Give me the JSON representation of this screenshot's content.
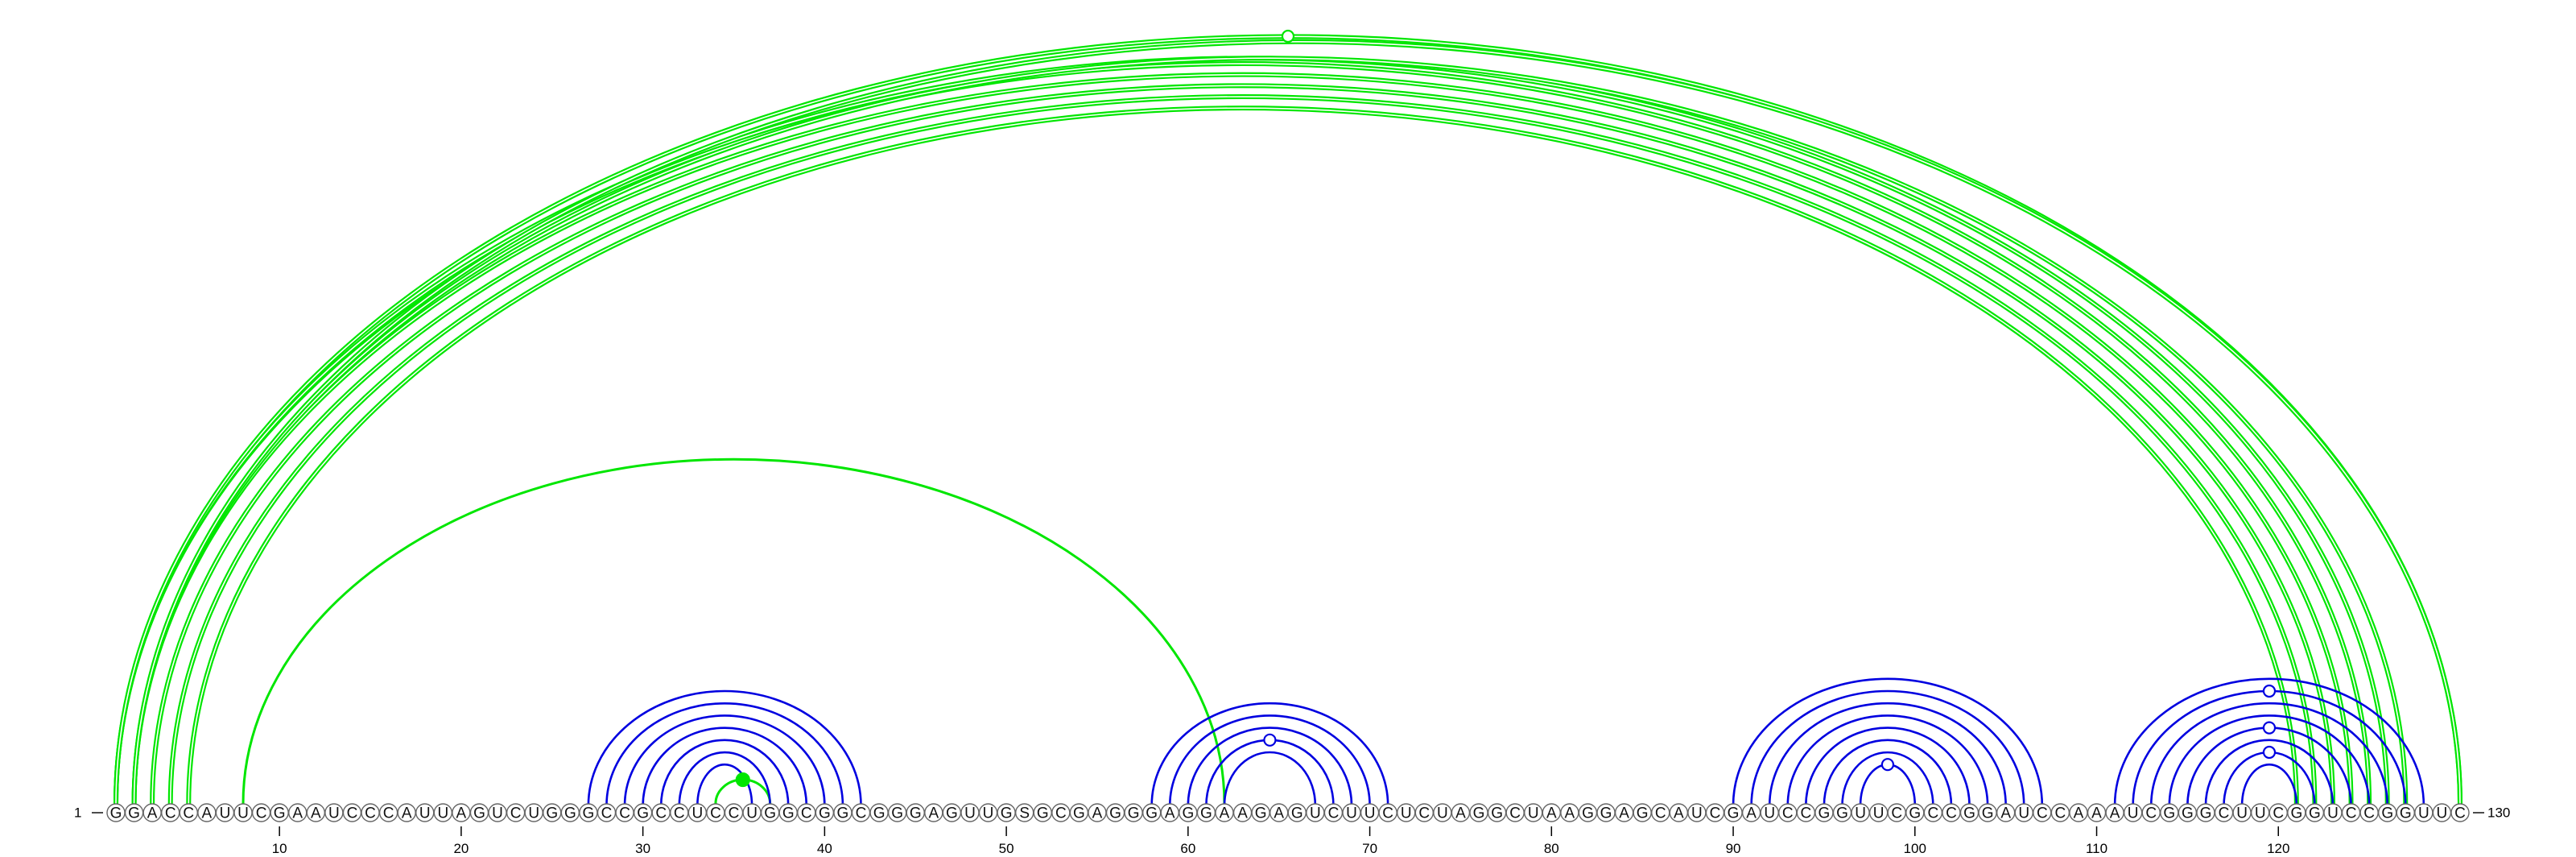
{
  "sequence": "GGACCAUUCGAAUCCCAUUAGUCUGGGCCGCCUCCUGGCGGCGGGAGUUGSGCGAGGGAGGAAGAGUCUUCUCUAGGCUAAGGAGCAUCGAUCCGGUUCGCCGGAUCCAAAUCGGGCUUCGGUCCGGUUC",
  "start_label": "1",
  "end_label": "130",
  "ticks": [
    10,
    20,
    30,
    40,
    50,
    60,
    70,
    80,
    90,
    100,
    110,
    120
  ],
  "colors": {
    "upper_arcs": "#00e600",
    "lower_arcs": "#0000e0",
    "nucleotide_outline": "#666666"
  },
  "upper_helices": [
    {
      "pairs": [
        [
          1,
          125
        ],
        [
          2,
          124
        ],
        [
          3,
          123
        ],
        [
          4,
          122
        ],
        [
          5,
          121
        ]
      ],
      "double_line": true
    },
    {
      "pairs": [
        [
          1,
          126
        ],
        [
          2,
          127
        ]
      ],
      "double_line": true
    },
    {
      "pairs": [
        [
          1,
          130
        ],
        [
          2,
          130
        ]
      ],
      "double_line": true
    },
    {
      "pairs": [
        [
          8,
          62
        ]
      ],
      "double_line": false
    },
    {
      "pairs": [
        [
          34,
          37
        ]
      ],
      "double_line": false
    }
  ],
  "lower_helices": [
    {
      "pairs": [
        [
          27,
          42
        ],
        [
          28,
          41
        ],
        [
          29,
          40
        ],
        [
          30,
          39
        ],
        [
          31,
          38
        ],
        [
          32,
          37
        ],
        [
          33,
          36
        ]
      ]
    },
    {
      "pairs": [
        [
          58,
          71
        ],
        [
          59,
          70
        ],
        [
          60,
          69
        ],
        [
          61,
          68
        ],
        [
          62,
          67
        ]
      ]
    },
    {
      "pairs": [
        [
          90,
          107
        ],
        [
          91,
          106
        ],
        [
          92,
          105
        ],
        [
          93,
          104
        ],
        [
          94,
          103
        ],
        [
          95,
          102
        ],
        [
          96,
          101
        ],
        [
          97,
          100
        ]
      ]
    },
    {
      "pairs": [
        [
          111,
          128
        ],
        [
          112,
          127
        ],
        [
          113,
          126
        ],
        [
          114,
          125
        ],
        [
          115,
          124
        ],
        [
          116,
          123
        ],
        [
          117,
          122
        ],
        [
          118,
          121
        ]
      ]
    }
  ],
  "markers": [
    {
      "at": [
        1,
        130
      ],
      "side": "upper",
      "filled": false
    },
    {
      "at": [
        34,
        37
      ],
      "side": "upper",
      "filled": true
    },
    {
      "at": [
        61,
        68
      ],
      "side": "lower",
      "filled": false
    },
    {
      "at": [
        97,
        100
      ],
      "side": "lower",
      "filled": false
    },
    {
      "at": [
        112,
        127
      ],
      "side": "lower",
      "filled": false
    },
    {
      "at": [
        115,
        124
      ],
      "side": "lower",
      "filled": false
    },
    {
      "at": [
        117,
        122
      ],
      "side": "lower",
      "filled": false
    }
  ]
}
